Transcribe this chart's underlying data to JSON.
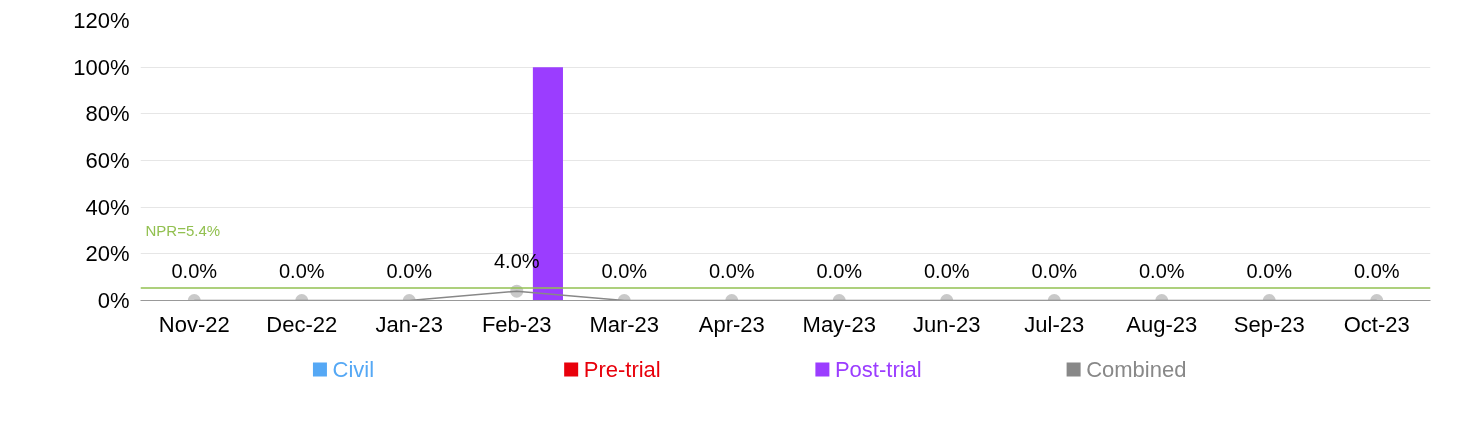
{
  "chart_data": {
    "type": "bar",
    "categories": [
      "Nov-22",
      "Dec-22",
      "Jan-23",
      "Feb-23",
      "Mar-23",
      "Apr-23",
      "May-23",
      "Jun-23",
      "Jul-23",
      "Aug-23",
      "Sep-23",
      "Oct-23"
    ],
    "series": [
      {
        "name": "Civil",
        "color": "#55a8f5",
        "values": [
          0,
          0,
          0,
          0,
          0,
          0,
          0,
          0,
          0,
          0,
          0,
          0
        ]
      },
      {
        "name": "Pre-trial",
        "color": "#e8000b",
        "values": [
          0,
          0,
          0,
          0,
          0,
          0,
          0,
          0,
          0,
          0,
          0,
          0
        ]
      },
      {
        "name": "Post-trial",
        "color": "#9b3dff",
        "values": [
          0,
          0,
          0,
          100,
          0,
          0,
          0,
          0,
          0,
          0,
          0,
          0
        ]
      },
      {
        "name": "Combined",
        "type": "line",
        "color": "#888888",
        "marker": "circle",
        "values": [
          0,
          0,
          0,
          4,
          0,
          0,
          0,
          0,
          0,
          0,
          0,
          0
        ],
        "value_labels": [
          "0.0%",
          "0.0%",
          "0.0%",
          "4.0%",
          "0.0%",
          "0.0%",
          "0.0%",
          "0.0%",
          "0.0%",
          "0.0%",
          "0.0%",
          "0.0%"
        ]
      }
    ],
    "ylim": [
      0,
      120
    ],
    "yticks": [
      {
        "value": 0,
        "label": "0%"
      },
      {
        "value": 20,
        "label": "20%"
      },
      {
        "value": 40,
        "label": "40%"
      },
      {
        "value": 60,
        "label": "60%"
      },
      {
        "value": 80,
        "label": "80%"
      },
      {
        "value": 100,
        "label": "100%"
      },
      {
        "value": 120,
        "label": "120%"
      }
    ],
    "ref_lines": [
      {
        "axis": "y",
        "value": 5.4,
        "label": "NPR=5.4%",
        "color": "#92c050"
      }
    ],
    "grid": "y",
    "legend": "bottom"
  }
}
